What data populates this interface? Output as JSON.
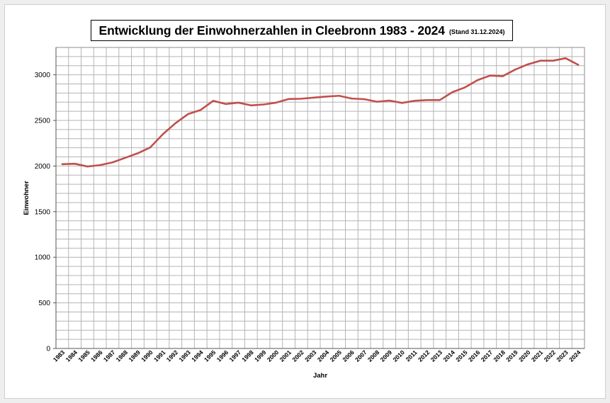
{
  "chart_data": {
    "type": "line",
    "title": "Entwicklung der Einwohnerzahlen in Cleebronn 1983 - 2024",
    "subtitle": "(Stand 31.12.2024)",
    "xlabel": "Jahr",
    "ylabel": "Einwohner",
    "ylim": [
      0,
      3300
    ],
    "yticks": [
      0,
      500,
      1000,
      1500,
      2000,
      2500,
      3000
    ],
    "grid": true,
    "line_color": "#c0504d",
    "categories": [
      "1983",
      "1984",
      "1985",
      "1986",
      "1987",
      "1988",
      "1989",
      "1990",
      "1991",
      "1992",
      "1993",
      "1994",
      "1995",
      "1996",
      "1997",
      "1998",
      "1999",
      "2000",
      "2001",
      "2002",
      "2003",
      "2004",
      "2005",
      "2006",
      "2007",
      "2008",
      "2009",
      "2010",
      "2011",
      "2012",
      "2013",
      "2014",
      "2015",
      "2016",
      "2017",
      "2018",
      "2019",
      "2020",
      "2021",
      "2022",
      "2023",
      "2024"
    ],
    "series": [
      {
        "values": [
          2020,
          2025,
          1995,
          2010,
          2040,
          2090,
          2140,
          2205,
          2350,
          2470,
          2570,
          2615,
          2715,
          2680,
          2695,
          2665,
          2675,
          2695,
          2735,
          2738,
          2750,
          2762,
          2770,
          2740,
          2733,
          2705,
          2717,
          2692,
          2715,
          2723,
          2723,
          2810,
          2862,
          2942,
          2992,
          2985,
          3058,
          3115,
          3155,
          3155,
          3182,
          3110
        ]
      }
    ]
  }
}
